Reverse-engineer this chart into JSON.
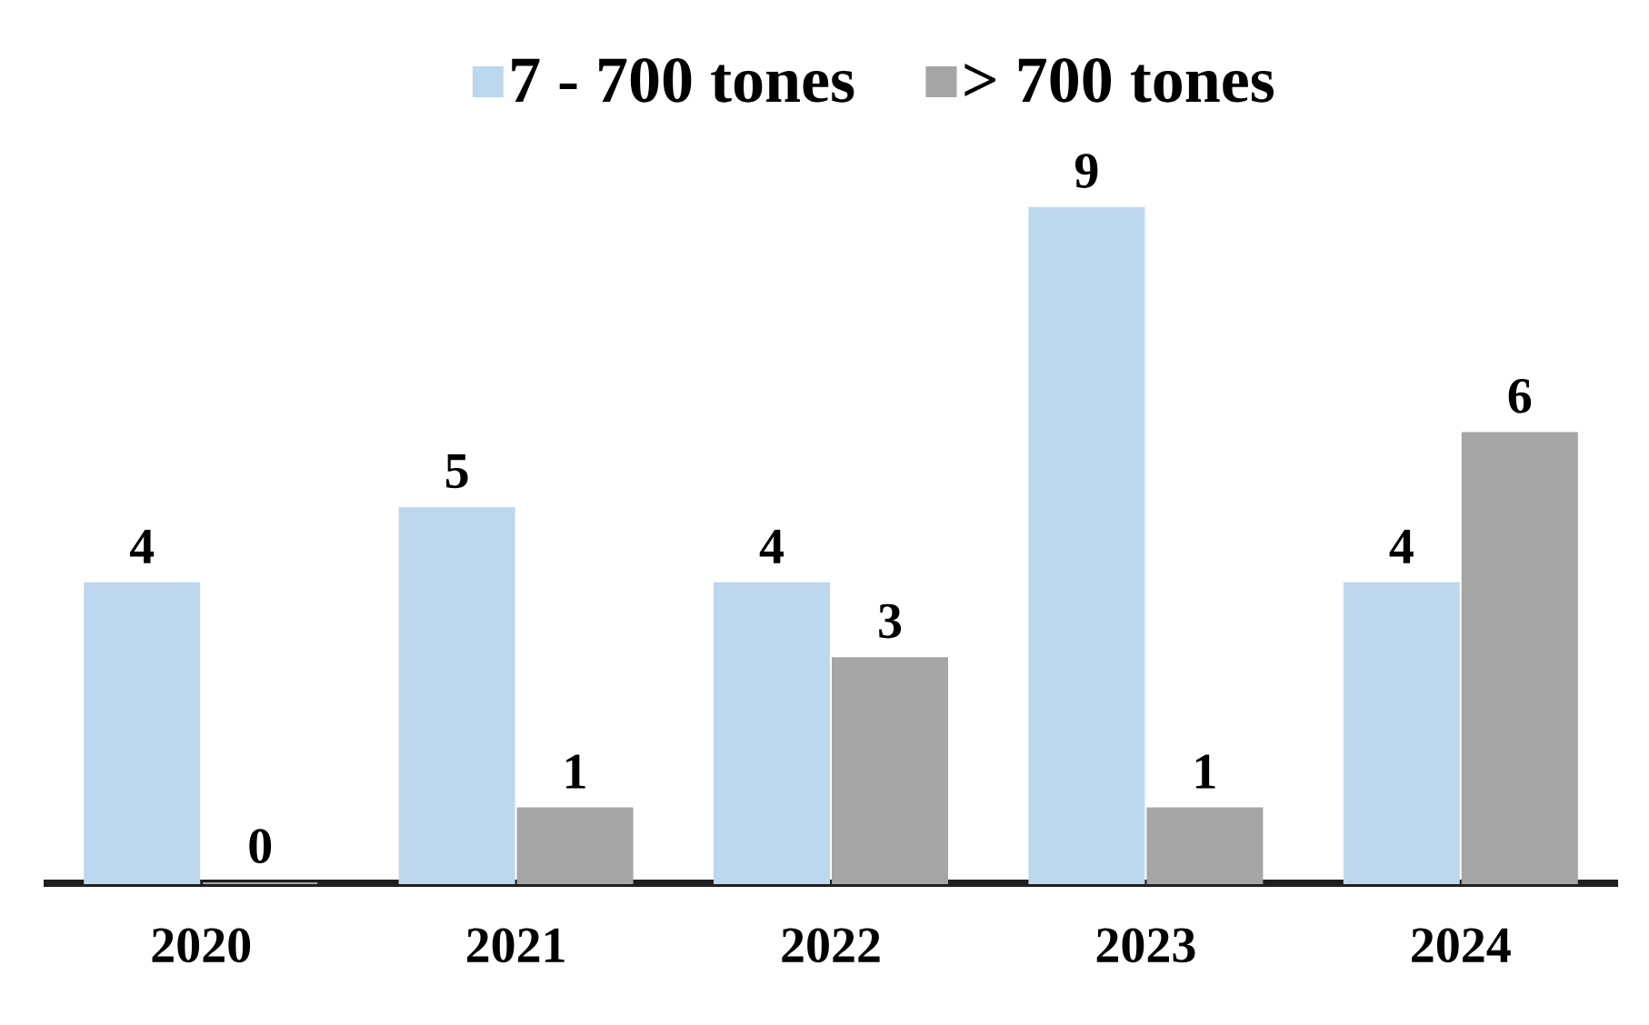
{
  "chart_data": {
    "type": "bar",
    "categories": [
      "2020",
      "2021",
      "2022",
      "2023",
      "2024"
    ],
    "series": [
      {
        "name": "7 - 700 tones",
        "color": "#bdd7ee",
        "values": [
          4,
          5,
          4,
          9,
          4
        ]
      },
      {
        "name": "> 700 tones",
        "color": "#a5a5a5",
        "values": [
          0,
          1,
          3,
          1,
          6
        ]
      }
    ],
    "data_labels": true,
    "legend": "top"
  }
}
